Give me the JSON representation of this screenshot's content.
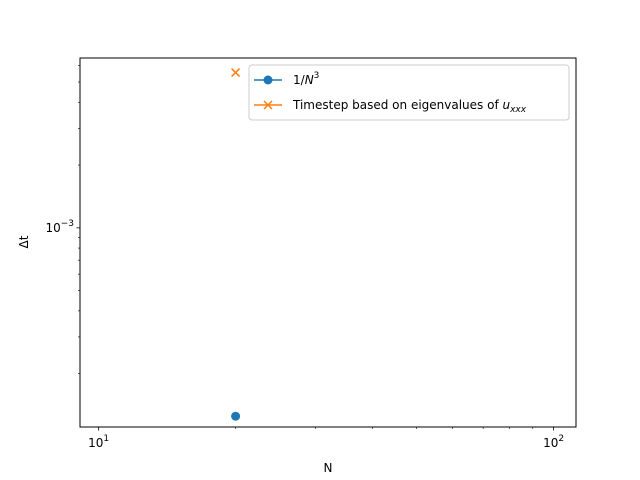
{
  "chart_data": {
    "type": "scatter",
    "xscale": "log",
    "yscale": "log",
    "xlim": [
      9.1,
      112
    ],
    "ylim": [
      0.000111,
      0.00652
    ],
    "xlabel": "N",
    "ylabel": "Δt",
    "x_ticks": [
      {
        "value": 10,
        "base": "10",
        "exp": "1"
      },
      {
        "value": 100,
        "base": "10",
        "exp": "2"
      }
    ],
    "y_ticks": [
      {
        "value": 0.001,
        "base": "10",
        "exp": "−3"
      }
    ],
    "x_minor_ticks": [
      20,
      30,
      40,
      50,
      60,
      70,
      80,
      90
    ],
    "y_minor_ticks": [
      0.0002,
      0.0003,
      0.0004,
      0.0005,
      0.0006,
      0.0007,
      0.0008,
      0.0009,
      0.002,
      0.003,
      0.004,
      0.005,
      0.006
    ],
    "grid": false,
    "legend_position": "upper right",
    "series": [
      {
        "label_prefix": "1/",
        "label_var": "N",
        "label_sup": "3",
        "color": "#1f77b4",
        "marker": "circle",
        "x": [
          20
        ],
        "y": [
          0.000125
        ]
      },
      {
        "label_prefix": "Timestep based on eigenvalues of ",
        "label_var": "u",
        "label_sub": "xxx",
        "color": "#ff7f0e",
        "marker": "x",
        "x": [
          20
        ],
        "y": [
          0.00555
        ]
      }
    ]
  }
}
